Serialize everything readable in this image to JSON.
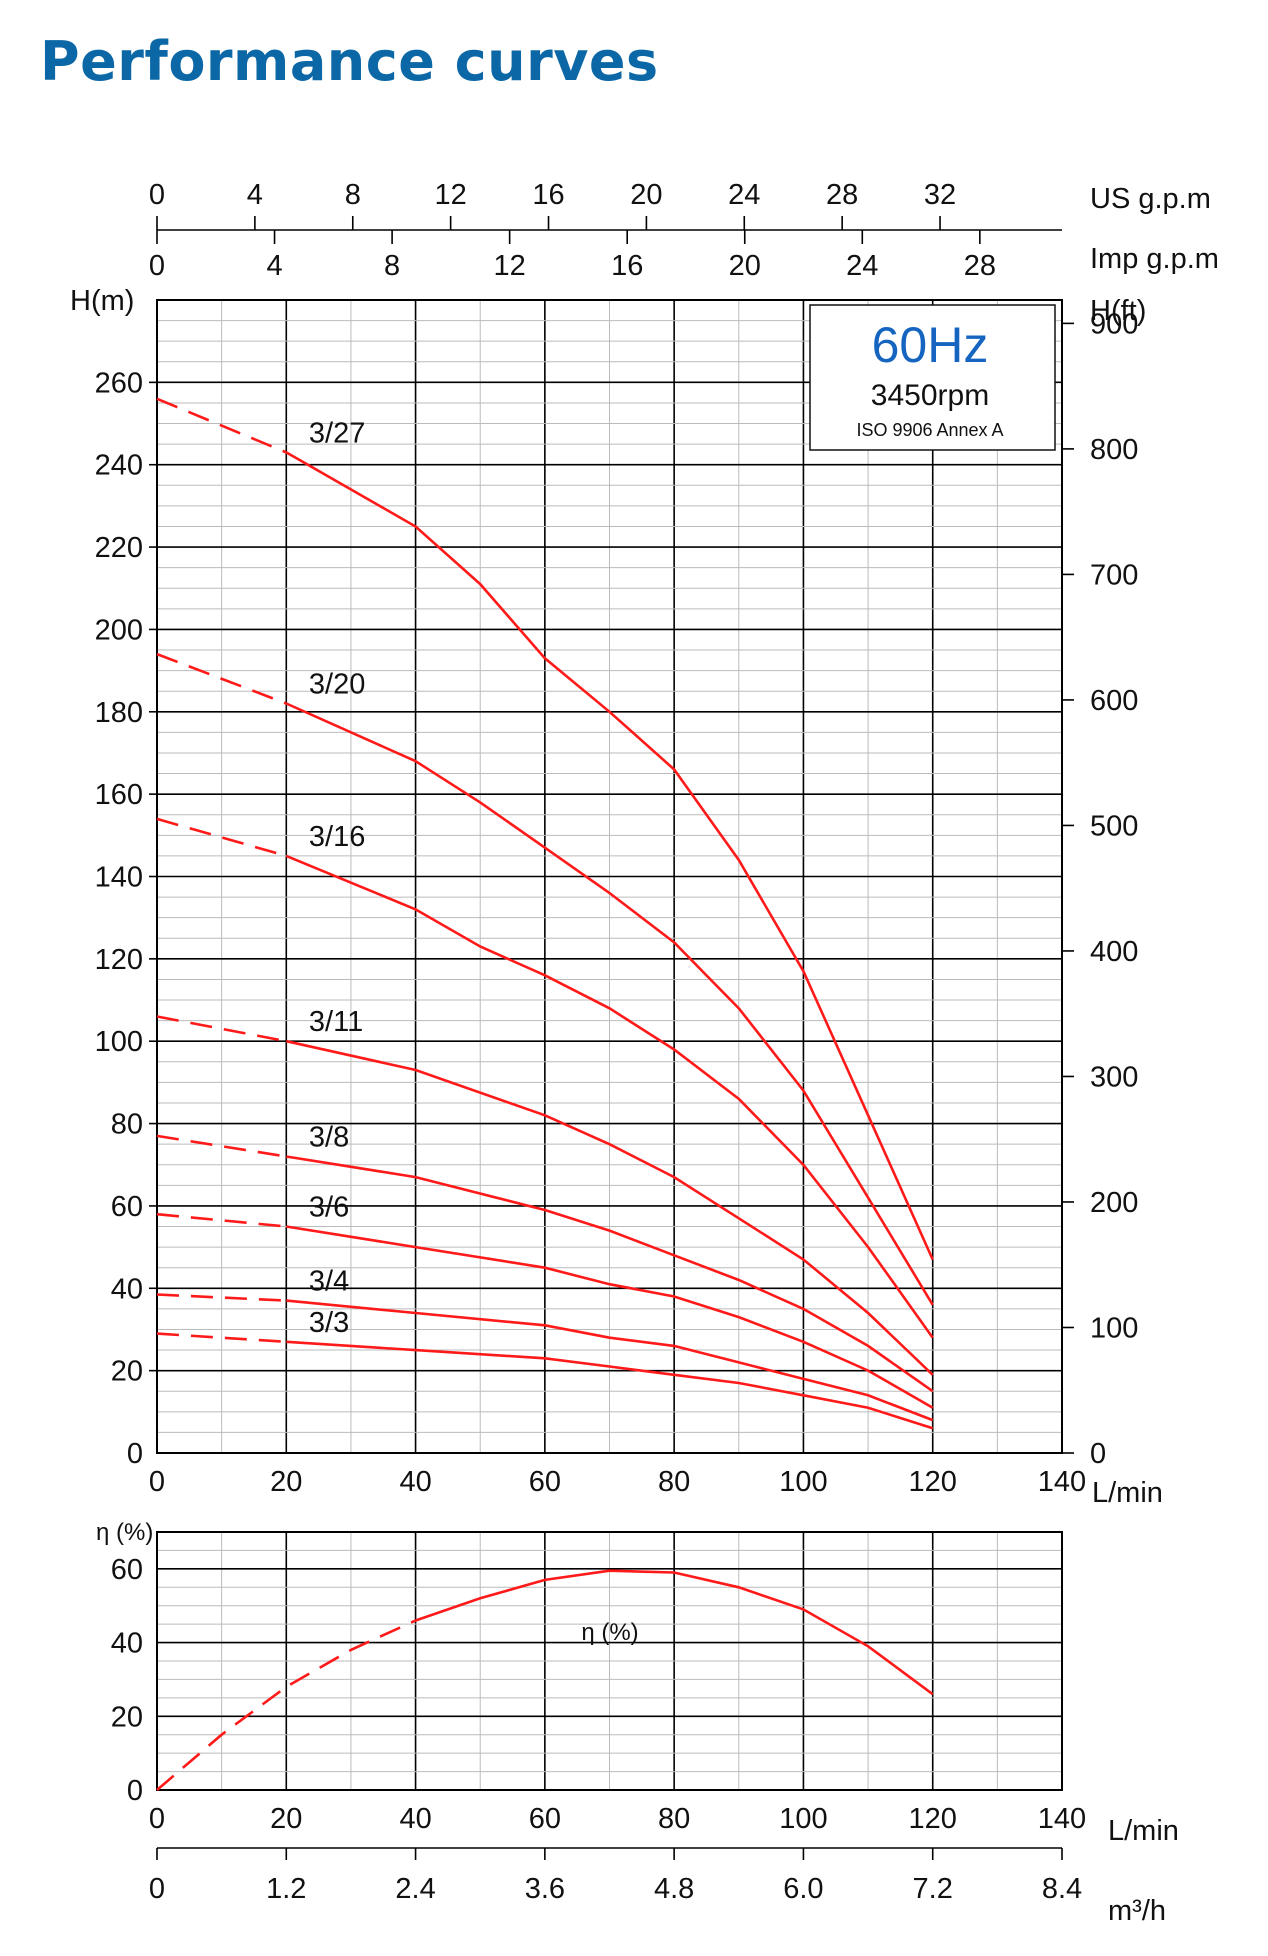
{
  "page": {
    "title": "Performance curves"
  },
  "info_box": {
    "frequency": "60Hz",
    "speed": "3450rpm",
    "standard": "ISO 9906 Annex A"
  },
  "colors": {
    "title": "#0b67a5",
    "frequency": "#1565c0",
    "curve": "#ff1a1a",
    "grid_major": "#000000",
    "grid_minor": "#bbbbbb"
  },
  "axes": {
    "usgpm": {
      "label": "US g.p.m",
      "ticks": [
        "0",
        "4",
        "8",
        "12",
        "16",
        "20",
        "24",
        "28",
        "32"
      ]
    },
    "impgpm": {
      "label": "Imp g.p.m",
      "ticks": [
        "0",
        "4",
        "8",
        "12",
        "16",
        "20",
        "24",
        "28"
      ]
    },
    "head_m": {
      "label": "H(m)",
      "ticks": [
        "0",
        "20",
        "40",
        "60",
        "80",
        "100",
        "120",
        "140",
        "160",
        "180",
        "200",
        "220",
        "240",
        "260"
      ]
    },
    "head_ft": {
      "label": "H(ft)",
      "ticks": [
        "0",
        "100",
        "200",
        "300",
        "400",
        "500",
        "600",
        "700",
        "800",
        "900"
      ]
    },
    "flow": {
      "label": "L/min",
      "ticks": [
        "0",
        "20",
        "40",
        "60",
        "80",
        "100",
        "120",
        "140"
      ]
    },
    "eff": {
      "label": "η (%)",
      "ticks": [
        "0",
        "20",
        "40",
        "60"
      ]
    },
    "m3h": {
      "label": "m³/h",
      "ticks": [
        "0",
        "1.2",
        "2.4",
        "3.6",
        "4.8",
        "6.0",
        "7.2",
        "8.4"
      ]
    }
  },
  "chart_data": [
    {
      "type": "line",
      "xlabel": "L/min",
      "ylabel": "H(m)",
      "y2label": "H(ft)",
      "xlim": [
        0,
        140
      ],
      "ylim": [
        0,
        280
      ],
      "grid": true,
      "series": [
        {
          "name": "3/27",
          "x": [
            0,
            20,
            40,
            50,
            60,
            70,
            80,
            90,
            100,
            110,
            120
          ],
          "y": [
            256,
            243,
            225,
            211,
            193,
            180,
            166,
            144,
            117,
            82,
            47
          ]
        },
        {
          "name": "3/20",
          "x": [
            0,
            20,
            40,
            50,
            60,
            70,
            80,
            90,
            100,
            110,
            120
          ],
          "y": [
            194,
            182,
            168,
            158,
            147,
            136,
            124,
            108,
            88,
            62,
            36
          ]
        },
        {
          "name": "3/16",
          "x": [
            0,
            20,
            40,
            50,
            60,
            70,
            80,
            90,
            100,
            110,
            120
          ],
          "y": [
            154,
            145,
            132,
            123,
            116,
            108,
            98,
            86,
            70,
            50,
            28
          ]
        },
        {
          "name": "3/11",
          "x": [
            0,
            20,
            40,
            60,
            70,
            80,
            90,
            100,
            110,
            120
          ],
          "y": [
            106,
            100,
            93,
            82,
            75,
            67,
            57,
            47,
            34,
            19
          ]
        },
        {
          "name": "3/8",
          "x": [
            0,
            20,
            40,
            60,
            70,
            80,
            90,
            100,
            110,
            120
          ],
          "y": [
            77,
            72,
            67,
            59,
            54,
            48,
            42,
            35,
            26,
            15
          ]
        },
        {
          "name": "3/6",
          "x": [
            0,
            20,
            40,
            60,
            70,
            80,
            90,
            100,
            110,
            120
          ],
          "y": [
            58,
            55,
            50,
            45,
            41,
            38,
            33,
            27,
            20,
            11
          ]
        },
        {
          "name": "3/4",
          "x": [
            0,
            20,
            40,
            60,
            70,
            80,
            90,
            100,
            110,
            120
          ],
          "y": [
            38.5,
            37,
            34,
            31,
            28,
            26,
            22,
            18,
            14,
            8
          ]
        },
        {
          "name": "3/3",
          "x": [
            0,
            20,
            40,
            60,
            70,
            80,
            90,
            100,
            110,
            120
          ],
          "y": [
            29,
            27,
            25,
            23,
            21,
            19,
            17,
            14,
            11,
            6
          ]
        }
      ]
    },
    {
      "type": "line",
      "xlabel": "L/min",
      "ylabel": "η (%)",
      "xlim": [
        0,
        140
      ],
      "ylim": [
        0,
        70
      ],
      "grid": true,
      "series": [
        {
          "name": "η (%)",
          "x": [
            0,
            10,
            20,
            30,
            40,
            50,
            60,
            70,
            80,
            90,
            100,
            110,
            120
          ],
          "y": [
            0,
            15,
            28,
            38,
            46,
            52,
            57,
            59.5,
            59,
            55,
            49,
            39,
            26
          ]
        }
      ]
    }
  ]
}
